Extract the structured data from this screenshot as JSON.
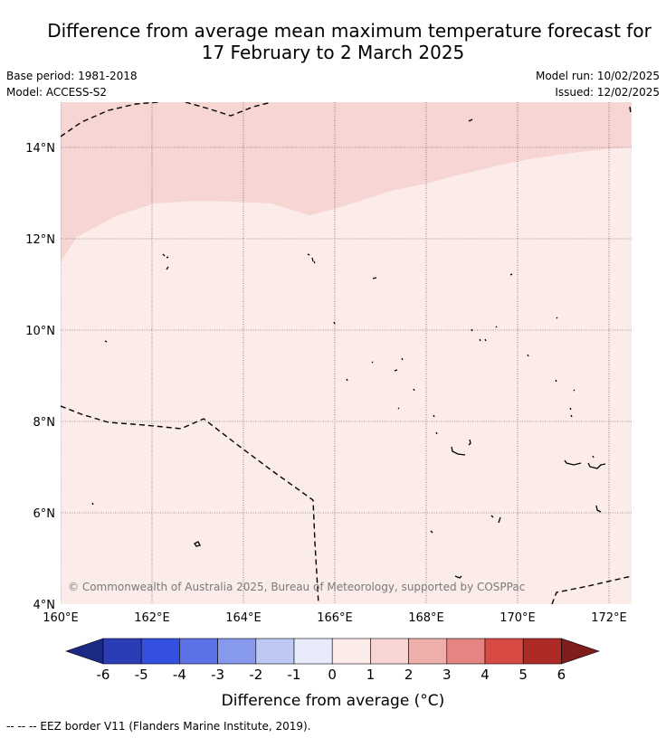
{
  "title": {
    "line1": "Difference from average mean maximum temperature forecast for",
    "line2": "17 February to 2 March 2025"
  },
  "meta": {
    "base_period": "Base period: 1981-2018",
    "model": "Model: ACCESS-S2",
    "model_run": "Model run: 10/02/2025",
    "issued": "Issued: 12/02/2025"
  },
  "map": {
    "lat_labels": [
      "14°N",
      "12°N",
      "10°N",
      "8°N",
      "6°N",
      "4°N"
    ],
    "lon_labels": [
      "160°E",
      "162°E",
      "164°E",
      "166°E",
      "168°E",
      "170°E",
      "172°E"
    ],
    "lat_range": [
      4,
      15
    ],
    "lon_range": [
      160,
      172.5
    ],
    "copyright": "© Commonwealth of Australia 2025, Bureau of Meteorology, supported by COSPPac",
    "colors": {
      "band_0_1": "#fbebe9",
      "band_1_2": "#f6d5d2",
      "border": "#000000",
      "grid": "#444444"
    }
  },
  "colorbar": {
    "ticks": [
      "-6",
      "-5",
      "-4",
      "-3",
      "-2",
      "-1",
      "0",
      "1",
      "2",
      "3",
      "4",
      "5",
      "6"
    ],
    "colors": [
      "#1c2a85",
      "#2a3db5",
      "#3450e0",
      "#5b72e6",
      "#8699ec",
      "#bfc8f4",
      "#e8ebfb",
      "#fbebe9",
      "#f6d5d2",
      "#eeaeaa",
      "#e58480",
      "#d94a42",
      "#ae2a24",
      "#7e1d1b"
    ],
    "label": "Difference from average (°C)"
  },
  "footnote": "-- -- -- EEZ border V11 (Flanders Marine Institute, 2019)."
}
